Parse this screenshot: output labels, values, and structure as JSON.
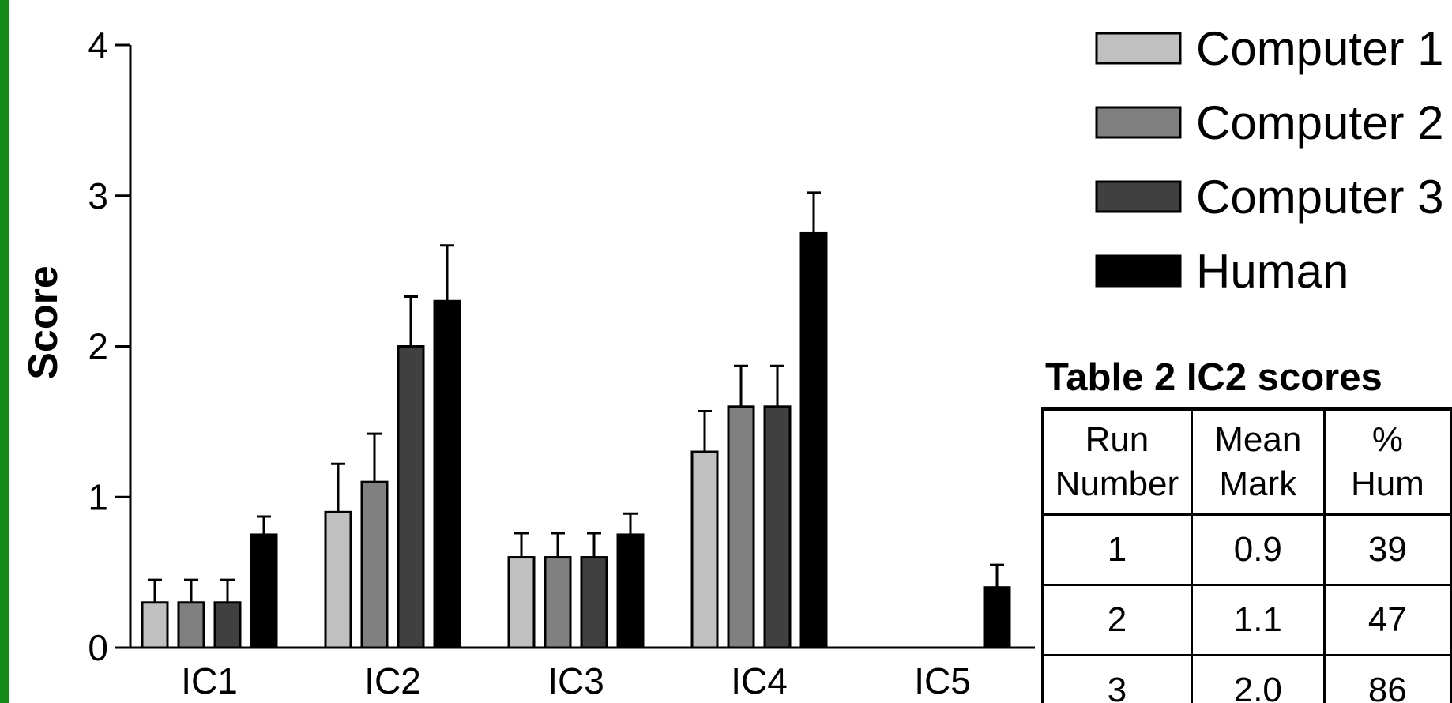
{
  "colors": {
    "left_bar": "#148a14",
    "computer1": "#c0c0c0",
    "computer2": "#808080",
    "computer3": "#404040",
    "human": "#000000"
  },
  "chart_data": {
    "type": "bar",
    "ylabel": "Score",
    "xlabel": "",
    "ylim": [
      0,
      4
    ],
    "yticks": [
      "0",
      "1",
      "2",
      "3",
      "4"
    ],
    "categories": [
      "IC1",
      "IC2",
      "IC3",
      "IC4",
      "IC5"
    ],
    "legend_position": "top-right",
    "error_bars": true,
    "series": [
      {
        "name": "Computer 1",
        "color": "#c0c0c0",
        "values": [
          0.3,
          0.9,
          0.6,
          1.3,
          0
        ],
        "errors": [
          0.15,
          0.32,
          0.16,
          0.27,
          0
        ]
      },
      {
        "name": "Computer 2",
        "color": "#808080",
        "values": [
          0.3,
          1.1,
          0.6,
          1.6,
          0
        ],
        "errors": [
          0.15,
          0.32,
          0.16,
          0.27,
          0
        ]
      },
      {
        "name": "Computer 3",
        "color": "#404040",
        "values": [
          0.3,
          2.0,
          0.6,
          1.6,
          0
        ],
        "errors": [
          0.15,
          0.33,
          0.16,
          0.27,
          0
        ]
      },
      {
        "name": "Human",
        "color": "#000000",
        "values": [
          0.75,
          2.3,
          0.75,
          2.75,
          0.4
        ],
        "errors": [
          0.12,
          0.37,
          0.14,
          0.27,
          0.15
        ]
      }
    ]
  },
  "table": {
    "title": "Table 2  IC2 scores",
    "headers": [
      [
        "Run",
        "Number"
      ],
      [
        "Mean",
        "Mark"
      ],
      [
        "%",
        "Hum"
      ]
    ],
    "rows": [
      [
        "1",
        "0.9",
        "39"
      ],
      [
        "2",
        "1.1",
        "47"
      ],
      [
        "3",
        "2.0",
        "86"
      ]
    ]
  }
}
